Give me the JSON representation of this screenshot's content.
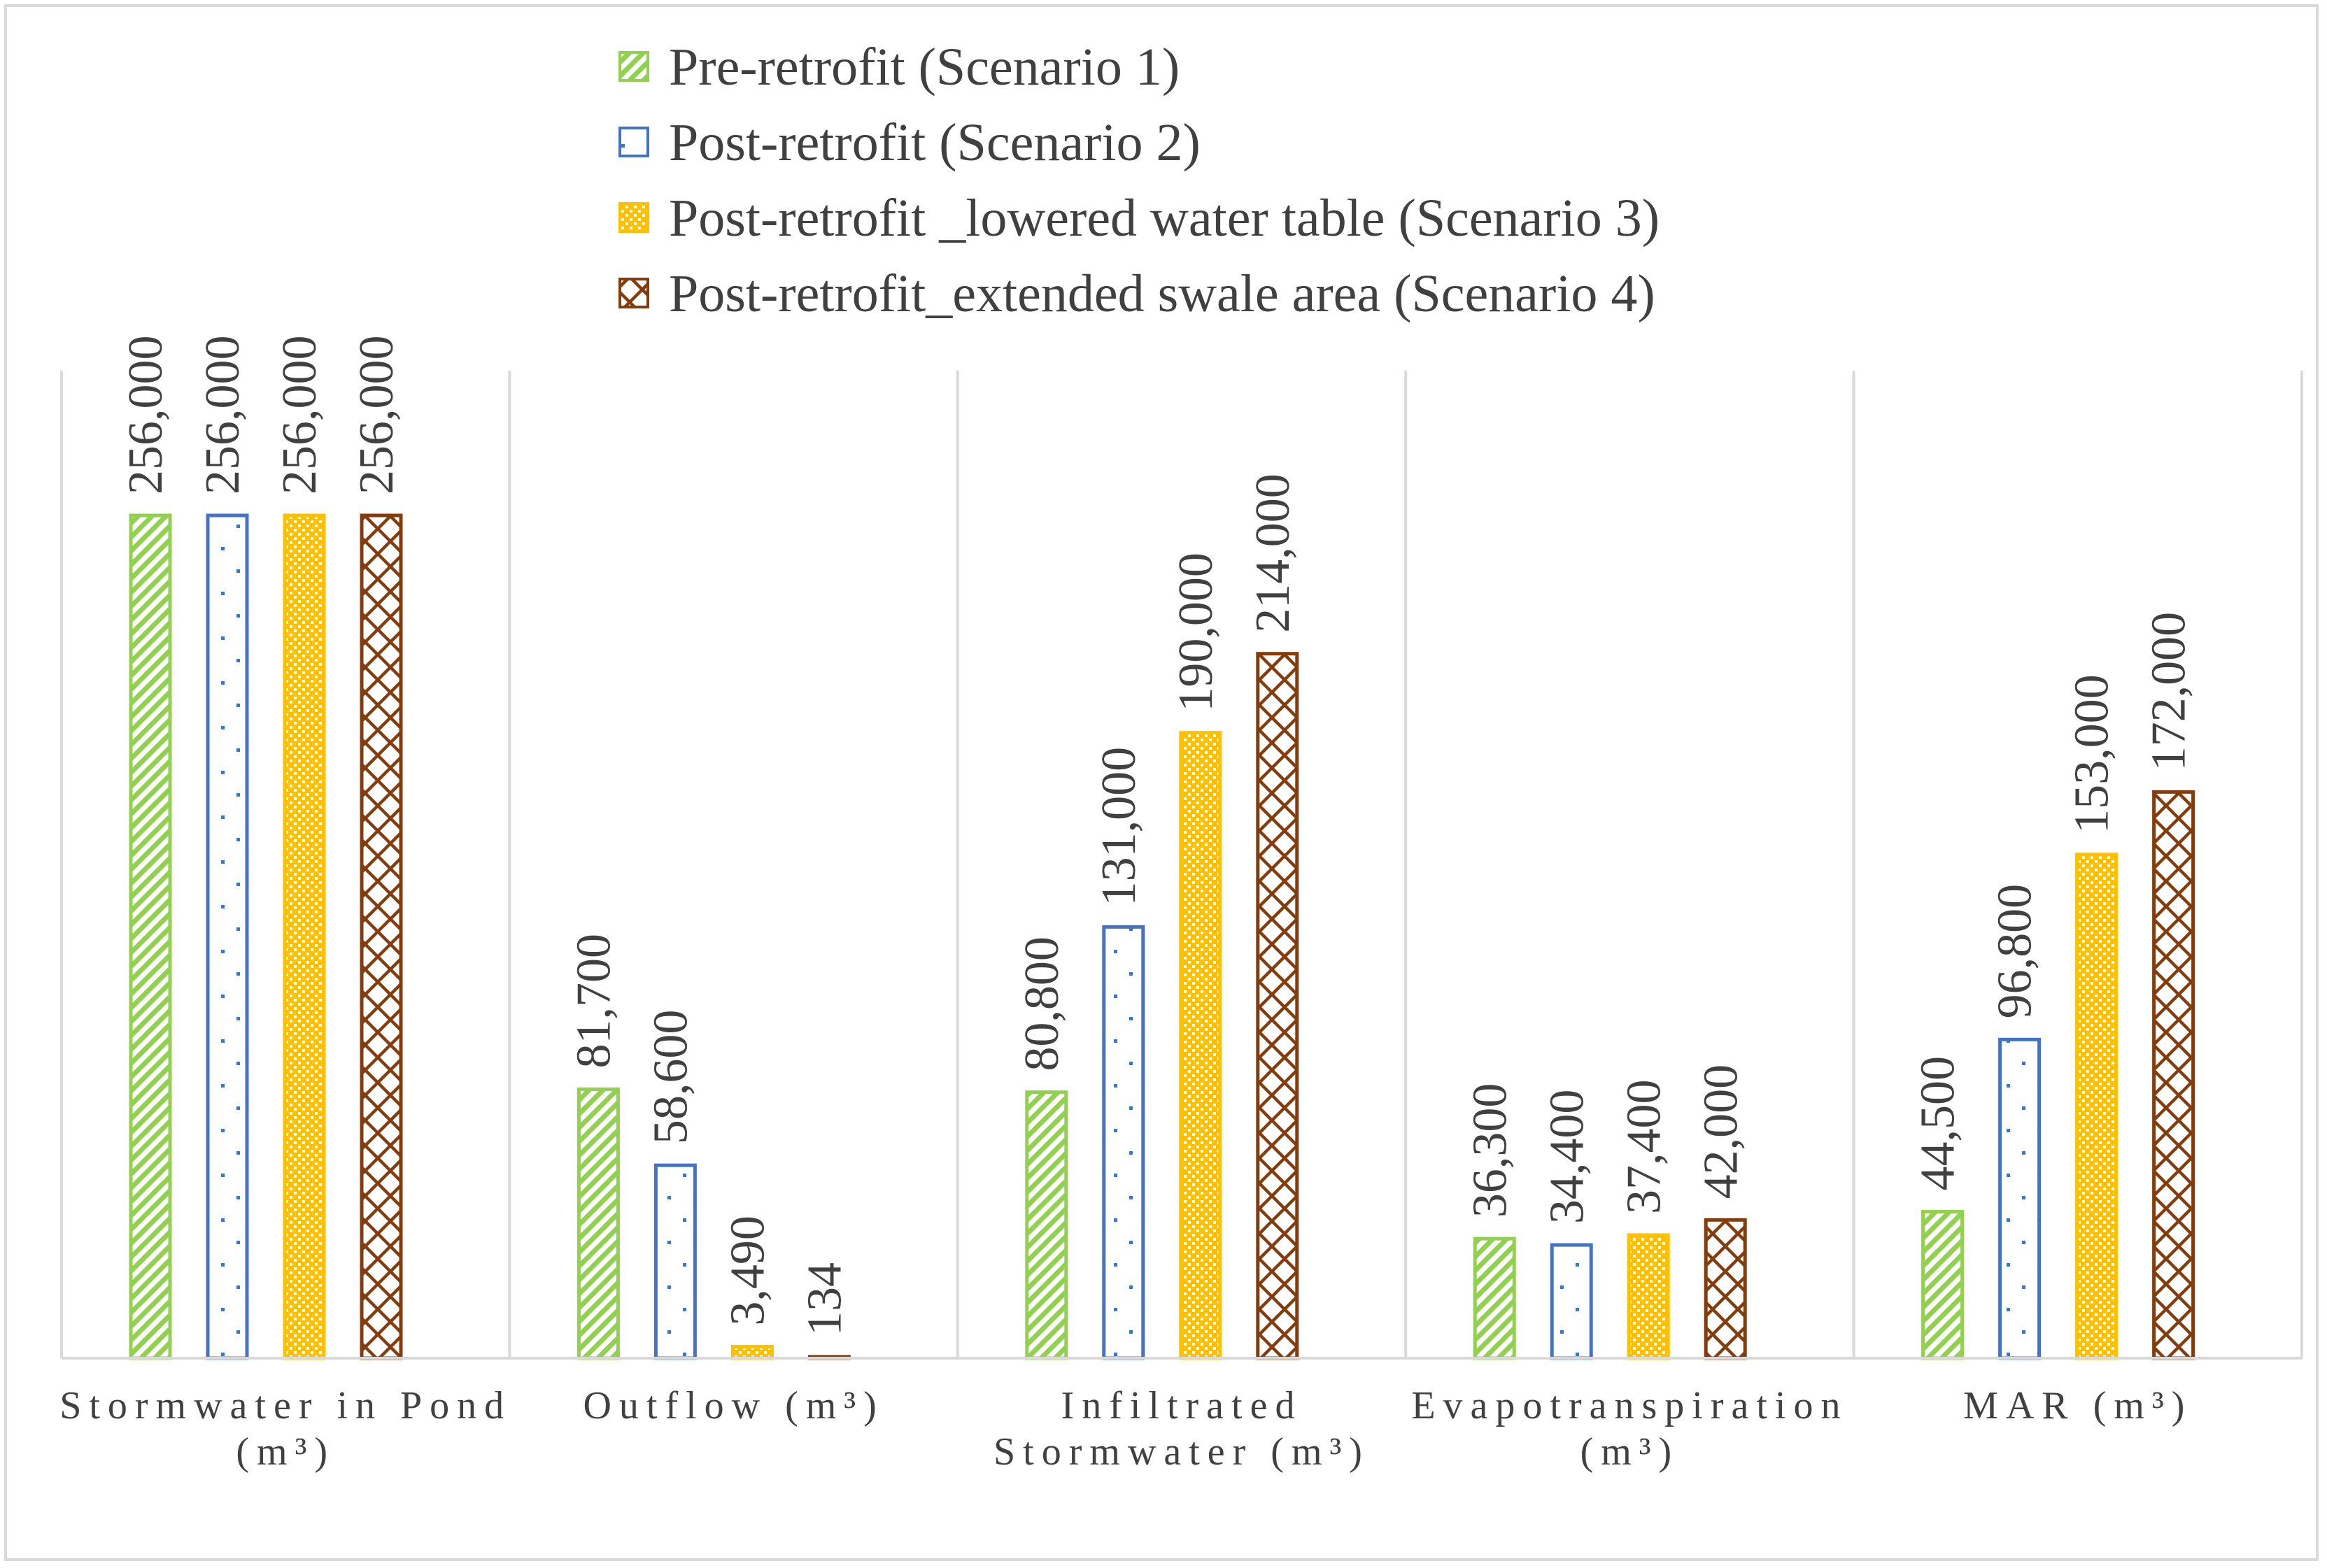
{
  "chart_data": {
    "type": "bar",
    "title": "",
    "xlabel": "",
    "ylabel": "",
    "grid": false,
    "legend_position": "top",
    "ylim": [
      0,
      280000
    ],
    "categories": [
      [
        "Stormwater in Pond",
        "(m³)"
      ],
      [
        "Outflow (m³)"
      ],
      [
        "Infiltrated",
        "Stormwater (m³)"
      ],
      [
        "Evapotranspiration",
        "(m³)"
      ],
      [
        "MAR (m³)"
      ]
    ],
    "series": [
      {
        "name": "Pre-retrofit (Scenario 1)",
        "color": "#92d050",
        "pattern": "diagonal-stripes",
        "values": [
          256000,
          81700,
          80800,
          36300,
          44500
        ],
        "labels": [
          "256,000",
          "81,700",
          "80,800",
          "36,300",
          "44,500"
        ]
      },
      {
        "name": "Post-retrofit (Scenario 2)",
        "color": "#4472c4",
        "pattern": "dots",
        "values": [
          256000,
          58600,
          131000,
          34400,
          96800
        ],
        "labels": [
          "256,000",
          "58,600",
          "131,000",
          "34,400",
          "96,800"
        ]
      },
      {
        "name": "Post-retrofit _lowered water table (Scenario 3)",
        "color": "#ffc000",
        "pattern": "checker",
        "values": [
          256000,
          3490,
          190000,
          37400,
          153000
        ],
        "labels": [
          "256,000",
          "3,490",
          "190,000",
          "37,400",
          "153,000"
        ]
      },
      {
        "name": "Post-retrofit_extended swale area (Scenario 4)",
        "color": "#843c0c",
        "pattern": "lattice",
        "values": [
          256000,
          134,
          214000,
          42000,
          172000
        ],
        "labels": [
          "256,000",
          "134",
          "214,000",
          "42,000",
          "172,000"
        ]
      }
    ]
  }
}
